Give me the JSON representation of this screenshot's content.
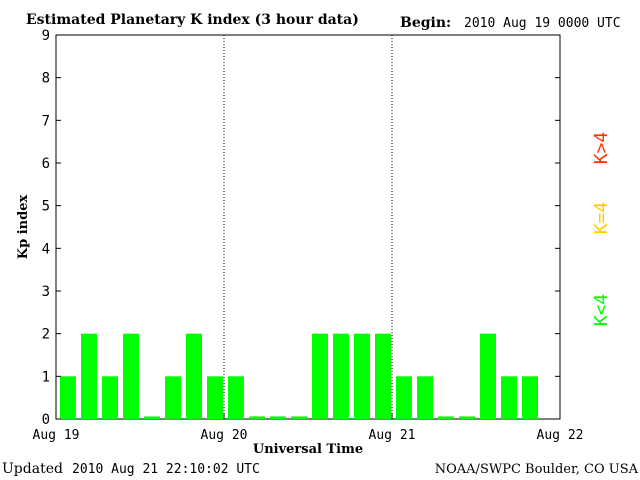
{
  "chart_data": {
    "type": "bar",
    "title": "Estimated Planetary K index (3 hour data)",
    "begin_label": "Begin:",
    "begin_value": "2010 Aug 19 0000 UTC",
    "xlabel": "Universal Time",
    "ylabel": "Kp index",
    "ylim": [
      0,
      9
    ],
    "yticks": [
      "0",
      "1",
      "2",
      "3",
      "4",
      "5",
      "6",
      "7",
      "8",
      "9"
    ],
    "xtick_labels": [
      "Aug 19",
      "Aug 20",
      "Aug 21",
      "Aug 22"
    ],
    "values": [
      1,
      2,
      1,
      2,
      0,
      1,
      2,
      1,
      1,
      0,
      0,
      0,
      2,
      2,
      2,
      2,
      1,
      1,
      0,
      0,
      2,
      1,
      1
    ],
    "bar_color": "#00ff00",
    "legend": [
      {
        "label": "K<4",
        "color": "#00ff00"
      },
      {
        "label": "K=4",
        "color": "#ffcc00"
      },
      {
        "label": "K>4",
        "color": "#ff3300"
      }
    ],
    "updated_label": "Updated",
    "updated_value": "2010 Aug 21 22:10:02 UTC",
    "source": "NOAA/SWPC Boulder, CO USA"
  }
}
